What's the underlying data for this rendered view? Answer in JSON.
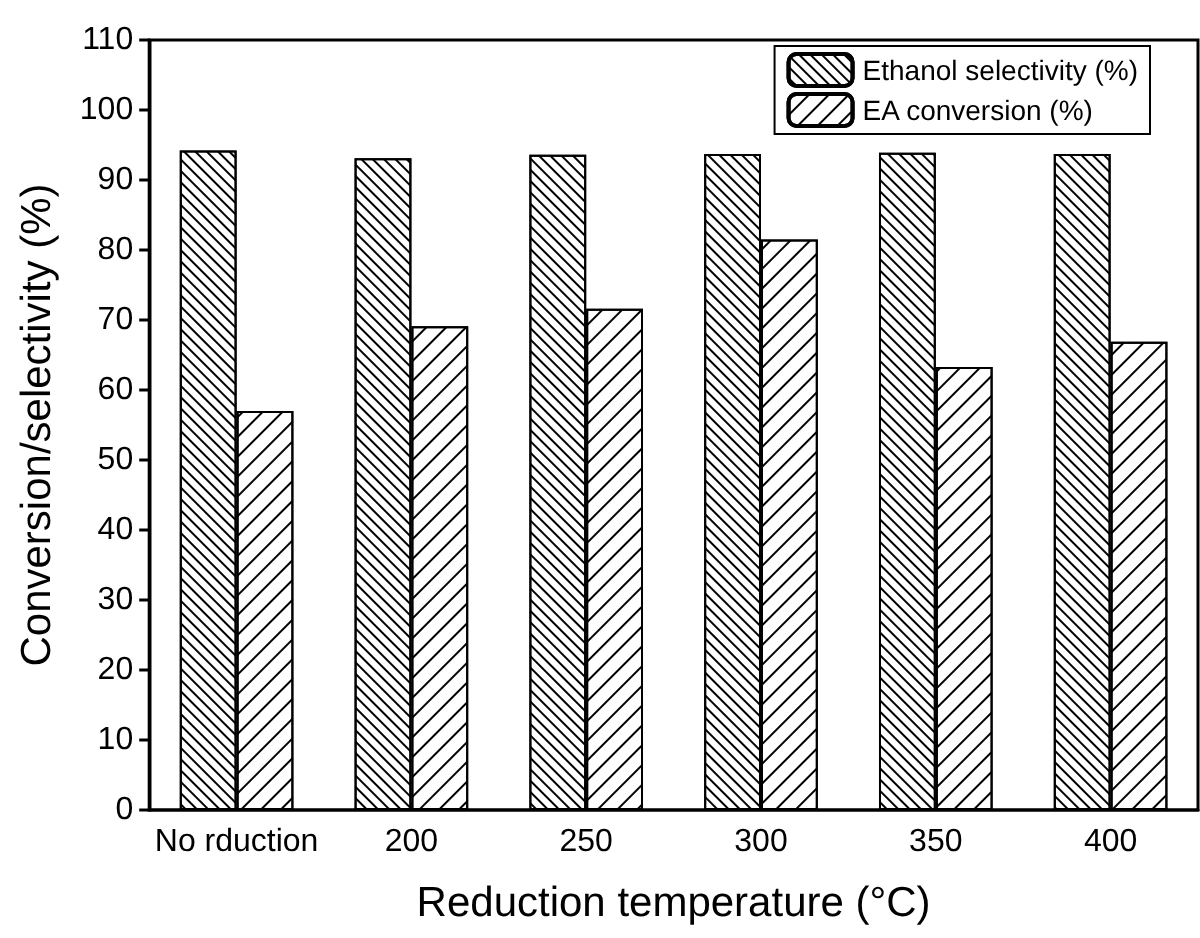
{
  "chart_data": {
    "type": "bar",
    "xlabel": "Reduction temperature (°C)",
    "ylabel": "Conversion/selectivity (%)",
    "categories": [
      "No rduction",
      "200",
      "250",
      "300",
      "350",
      "400"
    ],
    "series": [
      {
        "name": "Ethanol selectivity (%)",
        "color": "#ffffff",
        "values": [
          94.2,
          93.1,
          93.6,
          93.7,
          93.9,
          93.7
        ]
      },
      {
        "name": "EA conversion (%)",
        "color": "#ffffff",
        "values": [
          57.0,
          69.1,
          71.6,
          81.5,
          63.3,
          66.9
        ]
      }
    ],
    "ylim": [
      0,
      110
    ],
    "yticks": [
      0,
      10,
      20,
      30,
      40,
      50,
      60,
      70,
      80,
      90,
      100,
      110
    ],
    "grid": false,
    "legend": "top right"
  }
}
